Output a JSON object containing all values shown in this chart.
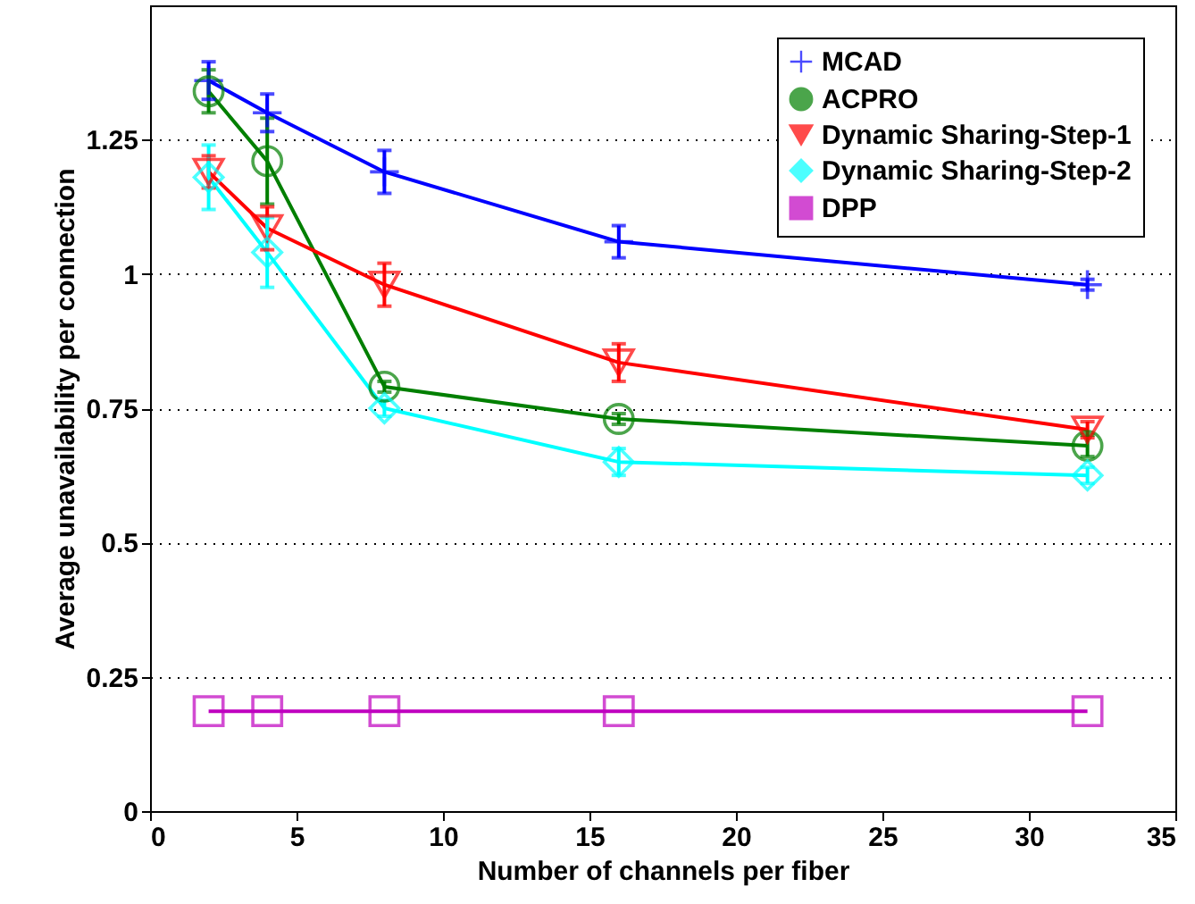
{
  "chart_data": {
    "type": "line",
    "xlabel": "Number of channels per fiber",
    "ylabel": "Average unavailability per connection",
    "x": [
      2,
      4,
      8,
      16,
      32
    ],
    "series": [
      {
        "name": "MCAD",
        "color": "#0000ff",
        "marker": "cross",
        "values": [
          1.36,
          1.3,
          1.19,
          1.06,
          0.98
        ],
        "errors": [
          0.035,
          0.035,
          0.04,
          0.03,
          0.01
        ]
      },
      {
        "name": "ACPRO",
        "color": "#007f00",
        "marker": "circle",
        "values": [
          1.34,
          1.21,
          0.79,
          0.73,
          0.68
        ],
        "errors": [
          0.04,
          0.08,
          0.01,
          0.01,
          0.02
        ]
      },
      {
        "name": "Dynamic Sharing-Step-1",
        "color": "#ff0000",
        "marker": "triangle",
        "values": [
          1.19,
          1.085,
          0.98,
          0.835,
          0.71
        ],
        "errors": [
          0.03,
          0.04,
          0.04,
          0.035,
          0.015
        ]
      },
      {
        "name": "Dynamic Sharing-Step-2",
        "color": "#00ffff",
        "marker": "diamond",
        "values": [
          1.18,
          1.04,
          0.75,
          0.65,
          0.625
        ],
        "errors": [
          0.06,
          0.065,
          0.015,
          0.025,
          0.015
        ]
      },
      {
        "name": "DPP",
        "color": "#bf00bf",
        "marker": "square",
        "values": [
          0.186,
          0.186,
          0.186,
          0.186,
          0.186
        ]
      }
    ],
    "xlim": [
      0,
      35
    ],
    "xticks": [
      0,
      5,
      10,
      15,
      20,
      25,
      30,
      35
    ],
    "ylim": [
      0,
      1.5
    ],
    "yticks": [
      0,
      0.25,
      0.5,
      0.75,
      1,
      1.25
    ],
    "grid": "y",
    "legend": "top right",
    "line_style": "solid"
  }
}
